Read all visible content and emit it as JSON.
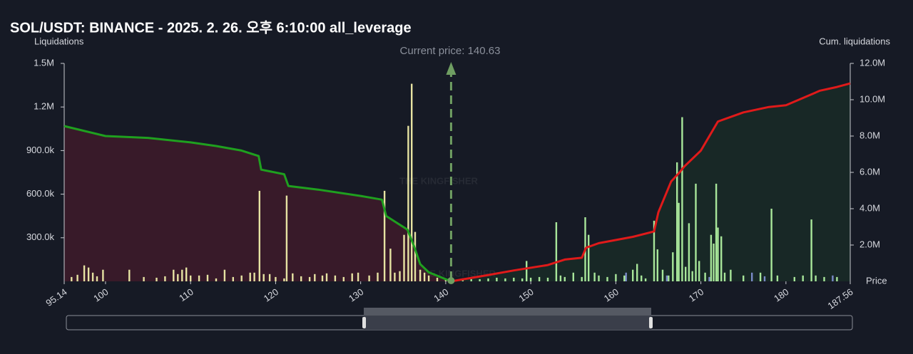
{
  "chart_data": {
    "type": "bar",
    "title": "SOL/USDT: BINANCE - 2025. 2. 26. 오후 6:10:00 all_leverage",
    "y_label": "Liquidations",
    "y2_label": "Cum. liquidations",
    "x_label": "Price",
    "annotation": "Current price: 140.63",
    "current_price": 140.63,
    "watermark": "THE KINGFISHER",
    "xlim": [
      95.14,
      187.56
    ],
    "xticks": [
      95.14,
      100,
      110,
      120,
      130,
      140,
      150,
      160,
      170,
      180,
      187.56
    ],
    "ylim": [
      0,
      1500000
    ],
    "yticks": [
      {
        "value": 300000,
        "label": "300.0k"
      },
      {
        "value": 600000,
        "label": "600.0k"
      },
      {
        "value": 900000,
        "label": "900.0k"
      },
      {
        "value": 1200000,
        "label": "1.2M"
      },
      {
        "value": 1500000,
        "label": "1.5M"
      }
    ],
    "y2lim": [
      0,
      12000000
    ],
    "y2ticks": [
      {
        "value": 2000000,
        "label": "2.0M"
      },
      {
        "value": 4000000,
        "label": "4.0M"
      },
      {
        "value": 6000000,
        "label": "6.0M"
      },
      {
        "value": 8000000,
        "label": "8.0M"
      },
      {
        "value": 10000000,
        "label": "10.0M"
      },
      {
        "value": 12000000,
        "label": "12.0M"
      }
    ],
    "series": [
      {
        "type": "bar",
        "color": "#e6e3a2",
        "x": [
          96,
          96.7,
          97.5,
          98,
          98.5,
          99,
          99.7,
          102.8,
          104.5,
          106,
          107,
          108,
          108.5,
          109,
          109.5,
          110,
          111,
          112,
          113,
          114,
          115,
          116,
          117,
          117.5,
          118.1,
          118.6,
          119.3,
          120,
          121,
          121.3,
          122,
          123,
          124,
          124.6,
          125.5,
          126,
          127,
          128,
          129,
          129.7,
          131,
          132,
          132.8,
          133.5,
          134,
          134.6,
          135.1,
          135.6,
          136,
          136.4,
          137,
          137.5,
          138,
          139,
          140
        ],
        "values": [
          30000,
          45000,
          110000,
          95000,
          60000,
          35000,
          80000,
          80000,
          30000,
          25000,
          35000,
          80000,
          50000,
          80000,
          95000,
          40000,
          40000,
          45000,
          20000,
          80000,
          30000,
          40000,
          60000,
          60000,
          623000,
          50000,
          50000,
          30000,
          20000,
          590000,
          55000,
          35000,
          30000,
          50000,
          40000,
          55000,
          40000,
          30000,
          55000,
          60000,
          40000,
          60000,
          623000,
          225000,
          60000,
          70000,
          320000,
          1070000,
          1360000,
          340000,
          80000,
          60000,
          40000,
          25000,
          15000
        ]
      },
      {
        "type": "bar",
        "color": "#a8e69a",
        "x": [
          141.2,
          142,
          143,
          144,
          145,
          146,
          147,
          148,
          149,
          149.5,
          150,
          151,
          152,
          153,
          153.5,
          154,
          155,
          156,
          156.4,
          156.8,
          157.5,
          158,
          159,
          160,
          161,
          162,
          162.5,
          163,
          163.5,
          164.5,
          164.9,
          165.5,
          166.2,
          166.7,
          167.2,
          167.4,
          167.8,
          168.2,
          168.6,
          169,
          169.4,
          169.8,
          170.5,
          171.2,
          171.5,
          171.8,
          172,
          172.4,
          172.8,
          173.5,
          175,
          177,
          178.3,
          179,
          181,
          182,
          183,
          183.5,
          184.5,
          186
        ],
        "values": [
          10000,
          20000,
          15000,
          15000,
          20000,
          25000,
          20000,
          25000,
          20000,
          140000,
          25000,
          30000,
          25000,
          407000,
          40000,
          30000,
          60000,
          30000,
          441000,
          320000,
          60000,
          40000,
          30000,
          50000,
          40000,
          80000,
          120000,
          40000,
          20000,
          417000,
          220000,
          80000,
          40000,
          200000,
          819000,
          540000,
          1130000,
          100000,
          400000,
          70000,
          672000,
          140000,
          60000,
          320000,
          260000,
          672000,
          370000,
          310000,
          60000,
          80000,
          40000,
          60000,
          500000,
          40000,
          30000,
          40000,
          426000,
          40000,
          30000,
          30000
        ]
      },
      {
        "type": "bar",
        "color": "#7a8ac8",
        "x": [
          161.2,
          166,
          171,
          176,
          177.5,
          185.5
        ],
        "values": [
          60000,
          40000,
          30000,
          60000,
          35000,
          40000
        ]
      },
      {
        "type": "line",
        "axis": "y2",
        "color": "#1fa01f",
        "fill": "rgba(120,30,50,0.35)",
        "x": [
          95.14,
          100,
          105,
          110,
          113,
          116,
          118,
          118.3,
          121,
          121.5,
          125,
          130,
          132.5,
          133,
          134.5,
          135.5,
          136.3,
          137,
          138,
          140.63
        ],
        "values": [
          8550000,
          8000000,
          7900000,
          7650000,
          7450000,
          7200000,
          6900000,
          6150000,
          5900000,
          5250000,
          5050000,
          4700000,
          4500000,
          3600000,
          3150000,
          2850000,
          1900000,
          950000,
          500000,
          0
        ]
      },
      {
        "type": "line",
        "axis": "y2",
        "color": "#e01a1a",
        "fill": "rgba(30,70,40,0.35)",
        "x": [
          140.63,
          145,
          148,
          152,
          154,
          156,
          156.5,
          158,
          162,
          164.5,
          165,
          166.5,
          167.5,
          168,
          170,
          172,
          175,
          178,
          180,
          184,
          186,
          187.56
        ],
        "values": [
          0,
          350000,
          600000,
          900000,
          1200000,
          1300000,
          1850000,
          2100000,
          2450000,
          2750000,
          3800000,
          5500000,
          6000000,
          6300000,
          7200000,
          8800000,
          9300000,
          9600000,
          9700000,
          10500000,
          10700000,
          10900000
        ]
      }
    ]
  }
}
